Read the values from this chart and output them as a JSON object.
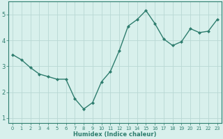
{
  "x": [
    0,
    1,
    2,
    3,
    4,
    5,
    6,
    7,
    8,
    9,
    10,
    11,
    12,
    13,
    14,
    15,
    16,
    17,
    18,
    19,
    20,
    21,
    22,
    23
  ],
  "y": [
    3.45,
    3.25,
    2.95,
    2.7,
    2.6,
    2.5,
    2.5,
    1.75,
    1.35,
    1.6,
    2.4,
    2.8,
    3.6,
    4.55,
    4.8,
    5.15,
    4.65,
    4.05,
    3.8,
    3.95,
    4.45,
    4.3,
    4.35,
    4.8
  ],
  "line_color": "#2e7d6e",
  "marker": "D",
  "marker_size": 2.0,
  "bg_color": "#d8f0ec",
  "grid_color": "#b8d8d4",
  "xlabel": "Humidex (Indice chaleur)",
  "xlabel_fontsize": 6.0,
  "ylabel": "",
  "title": "",
  "ylim": [
    0.8,
    5.5
  ],
  "xlim": [
    -0.5,
    23.5
  ],
  "yticks": [
    1,
    2,
    3,
    4,
    5
  ],
  "ytick_fontsize": 6.0,
  "xtick_fontsize": 4.8,
  "xticks": [
    0,
    1,
    2,
    3,
    4,
    5,
    6,
    7,
    8,
    9,
    10,
    11,
    12,
    13,
    14,
    15,
    16,
    17,
    18,
    19,
    20,
    21,
    22,
    23
  ],
  "linewidth": 1.0,
  "spine_color": "#2e7d6e",
  "spine_linewidth": 0.8
}
